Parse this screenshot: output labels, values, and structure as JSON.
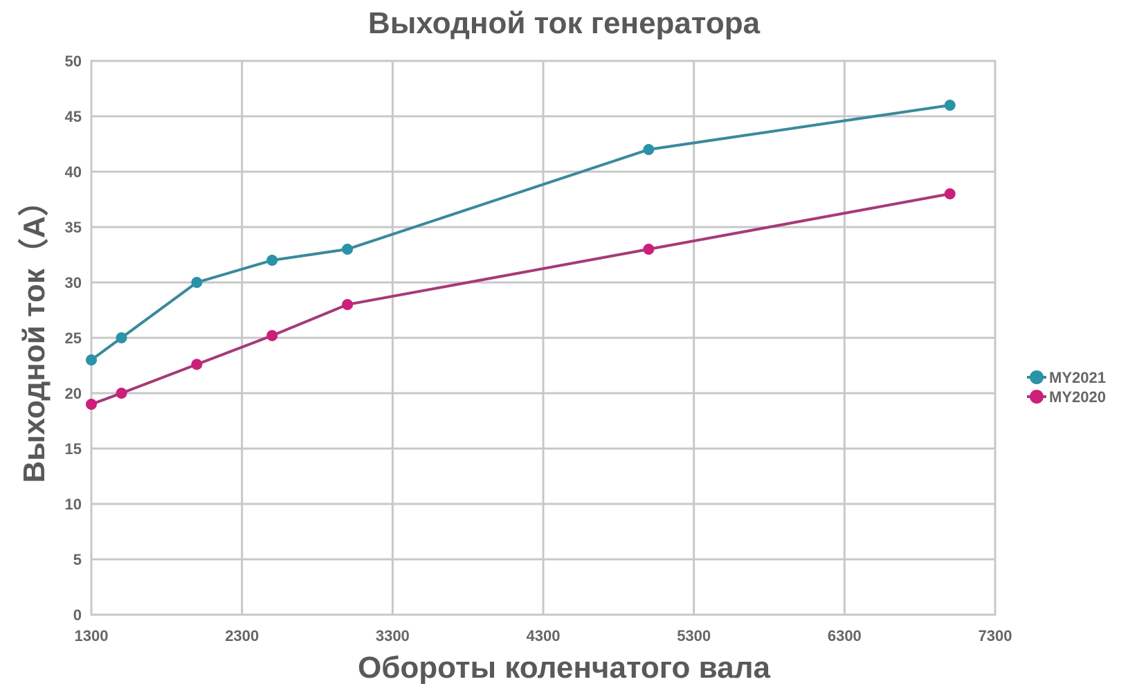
{
  "chart_data": {
    "type": "line",
    "title": "Выходной ток генератора",
    "xlabel": "Обороты коленчатого вала",
    "ylabel": "Выходной ток（A）",
    "xlim": [
      1300,
      7300
    ],
    "ylim": [
      0,
      50
    ],
    "x_ticks": [
      1300,
      2300,
      3300,
      4300,
      5300,
      6300,
      7300
    ],
    "y_ticks": [
      0,
      5,
      10,
      15,
      20,
      25,
      30,
      35,
      40,
      45,
      50
    ],
    "grid": true,
    "legend_position": "right",
    "series": [
      {
        "name": "MY2021",
        "color": "#3a8a9a",
        "marker_color": "#2a93a8",
        "points": [
          {
            "x": 1300,
            "y": 23
          },
          {
            "x": 1500,
            "y": 25
          },
          {
            "x": 2000,
            "y": 30
          },
          {
            "x": 2500,
            "y": 32
          },
          {
            "x": 3000,
            "y": 33
          },
          {
            "x": 5000,
            "y": 42
          },
          {
            "x": 7000,
            "y": 46
          }
        ]
      },
      {
        "name": "MY2020",
        "color": "#a63a78",
        "marker_color": "#cc1f7a",
        "points": [
          {
            "x": 1300,
            "y": 19
          },
          {
            "x": 1500,
            "y": 20
          },
          {
            "x": 2000,
            "y": 22.6
          },
          {
            "x": 2500,
            "y": 25.2
          },
          {
            "x": 3000,
            "y": 28
          },
          {
            "x": 5000,
            "y": 33
          },
          {
            "x": 7000,
            "y": 38
          }
        ]
      }
    ]
  }
}
